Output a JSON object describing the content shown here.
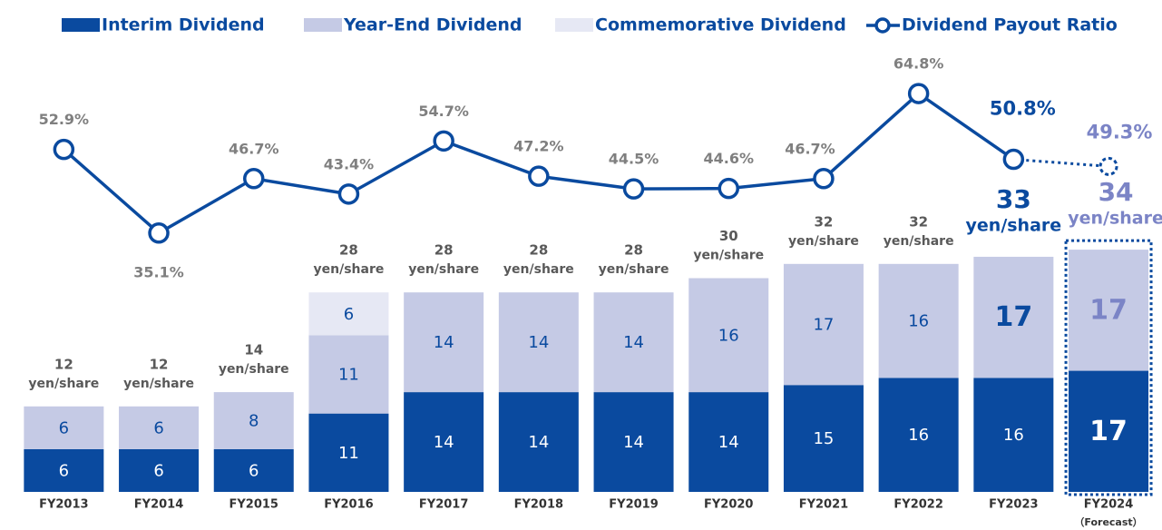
{
  "chart_data": {
    "type": "bar",
    "categories": [
      "FY2013",
      "FY2014",
      "FY2015",
      "FY2016",
      "FY2017",
      "FY2018",
      "FY2019",
      "FY2020",
      "FY2021",
      "FY2022",
      "FY2023",
      "FY2024"
    ],
    "forecast_label": "（Forecast）",
    "series": [
      {
        "name": "Interim Dividend",
        "color": "#0a4a9f",
        "values": [
          6,
          6,
          6,
          11,
          14,
          14,
          14,
          14,
          15,
          16,
          16,
          17
        ]
      },
      {
        "name": "Year-End Dividend",
        "color": "#c5cae5",
        "values": [
          6,
          6,
          8,
          11,
          14,
          14,
          14,
          16,
          17,
          16,
          17,
          17
        ]
      },
      {
        "name": "Commemorative Dividend",
        "color": "#e6e8f4",
        "values": [
          null,
          null,
          null,
          6,
          null,
          null,
          null,
          null,
          null,
          null,
          null,
          null
        ]
      },
      {
        "name": "Dividend Payout Ratio",
        "color": "#0a4a9f",
        "type": "line",
        "axis": "y2",
        "values": [
          52.9,
          35.1,
          46.7,
          43.4,
          54.7,
          47.2,
          44.5,
          44.6,
          46.7,
          64.8,
          50.8,
          49.3
        ],
        "value_labels": [
          "52.9%",
          "35.1%",
          "46.7%",
          "43.4%",
          "54.7%",
          "47.2%",
          "44.5%",
          "44.6%",
          "46.7%",
          "64.8%",
          "50.8%",
          "49.3%"
        ]
      }
    ],
    "totals": [
      12,
      12,
      14,
      28,
      28,
      28,
      28,
      30,
      32,
      32,
      33,
      34
    ],
    "total_unit": "yen/share",
    "ylim": [
      0,
      60
    ],
    "y2lim": [
      -20,
      71
    ],
    "grid": false
  }
}
